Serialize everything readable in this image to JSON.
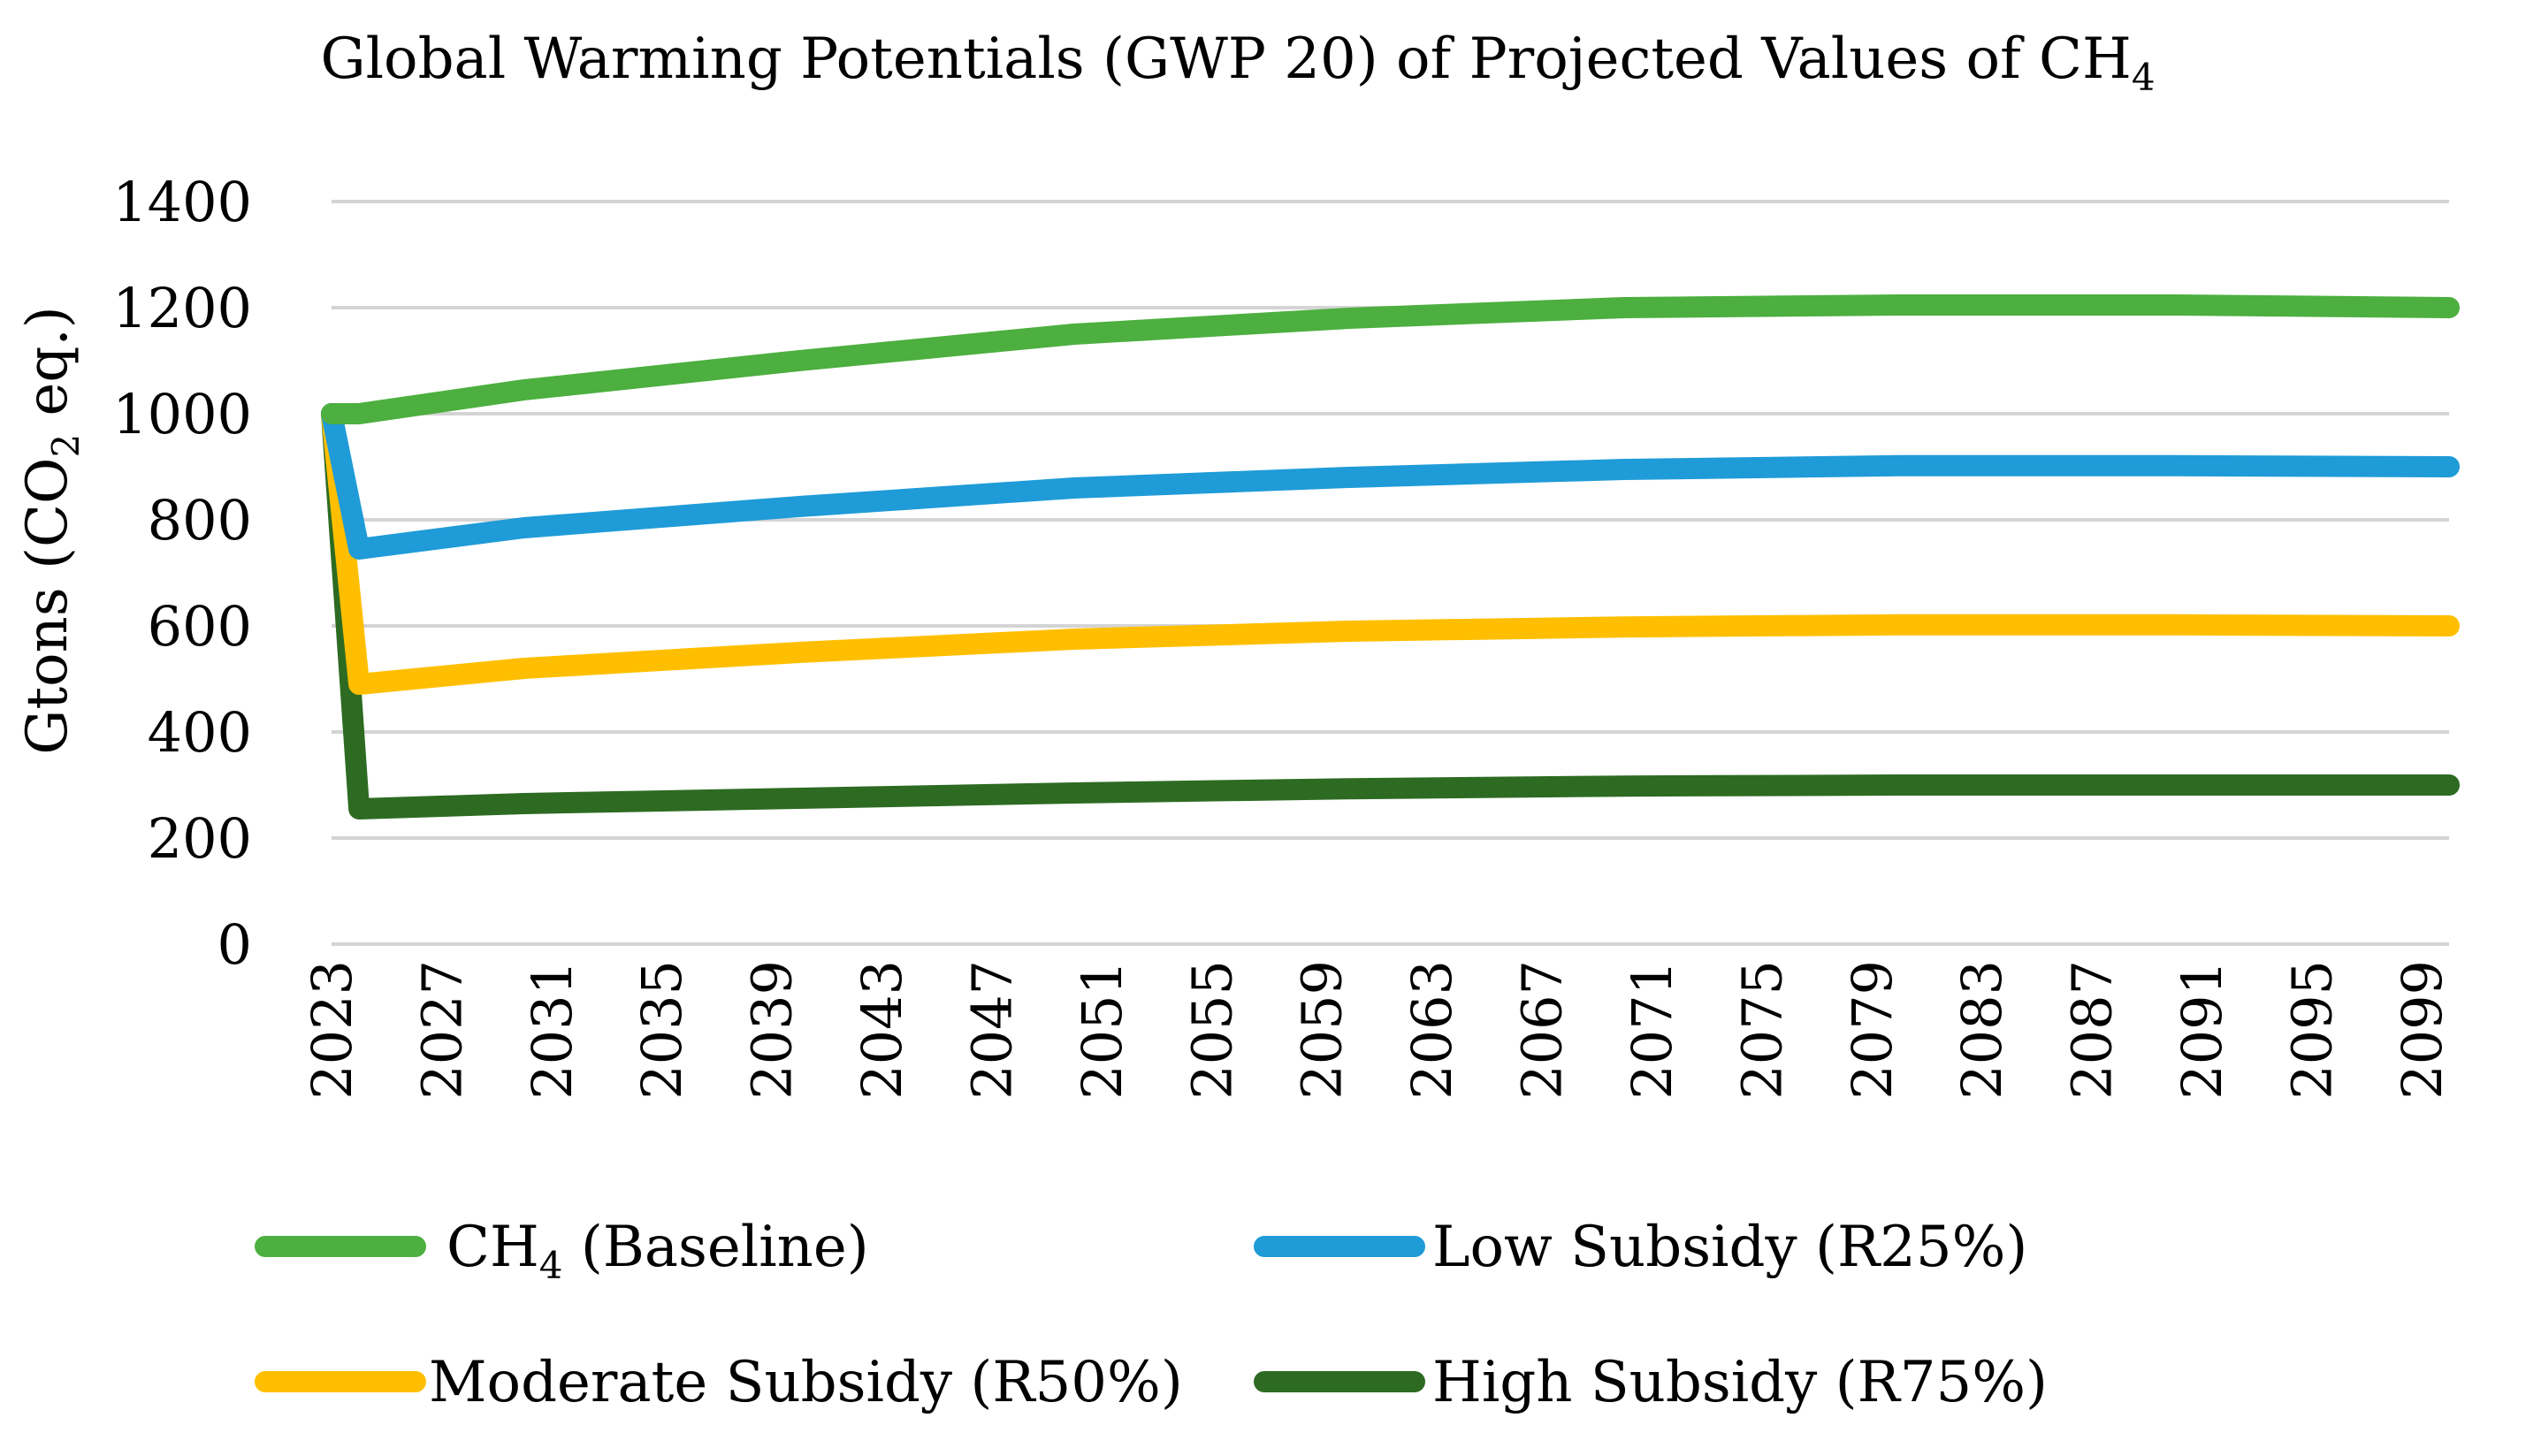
{
  "chart_data": {
    "type": "line",
    "title": {
      "prefix": "Global Warming Potentials (GWP 20) of Projected Values of CH",
      "subscript": "4"
    },
    "ylabel": {
      "prefix": "Gtons (CO",
      "subscript": "2",
      "suffix": " eq.)"
    },
    "xlabel": "",
    "ylim": [
      0,
      1400
    ],
    "yticks": [
      0,
      200,
      400,
      600,
      800,
      1000,
      1200,
      1400
    ],
    "xlim": [
      2023,
      2100
    ],
    "xticks": [
      2023,
      2027,
      2031,
      2035,
      2039,
      2043,
      2047,
      2051,
      2055,
      2059,
      2063,
      2067,
      2071,
      2075,
      2079,
      2083,
      2087,
      2091,
      2095,
      2099
    ],
    "grid": "horizontal",
    "legend_position": "bottom",
    "series": [
      {
        "name": "CH4 (Baseline)",
        "legend_prefix": "CH",
        "legend_subscript": "4",
        "legend_suffix": " (Baseline)",
        "color": "#4caf3f",
        "x": [
          2023,
          2024,
          2030,
          2040,
          2050,
          2060,
          2070,
          2080,
          2090,
          2100
        ],
        "y": [
          1000,
          1000,
          1045,
          1100,
          1150,
          1180,
          1200,
          1205,
          1205,
          1200
        ]
      },
      {
        "name": "Low Subsidy (R25%)",
        "color": "#1f9bd8",
        "x": [
          2023,
          2024,
          2030,
          2040,
          2050,
          2060,
          2070,
          2080,
          2090,
          2100
        ],
        "y": [
          1000,
          745,
          785,
          825,
          860,
          880,
          895,
          902,
          902,
          900
        ]
      },
      {
        "name": "Moderate Subsidy (R50%)",
        "color": "#ffbf00",
        "x": [
          2023,
          2024,
          2030,
          2040,
          2050,
          2060,
          2070,
          2080,
          2090,
          2100
        ],
        "y": [
          1000,
          490,
          520,
          550,
          575,
          590,
          598,
          602,
          602,
          600
        ]
      },
      {
        "name": "High Subsidy (R75%)",
        "color": "#2d6b22",
        "x": [
          2023,
          2024,
          2030,
          2040,
          2050,
          2060,
          2070,
          2080,
          2090,
          2100
        ],
        "y": [
          1000,
          255,
          265,
          275,
          285,
          293,
          298,
          300,
          300,
          300
        ]
      }
    ]
  }
}
